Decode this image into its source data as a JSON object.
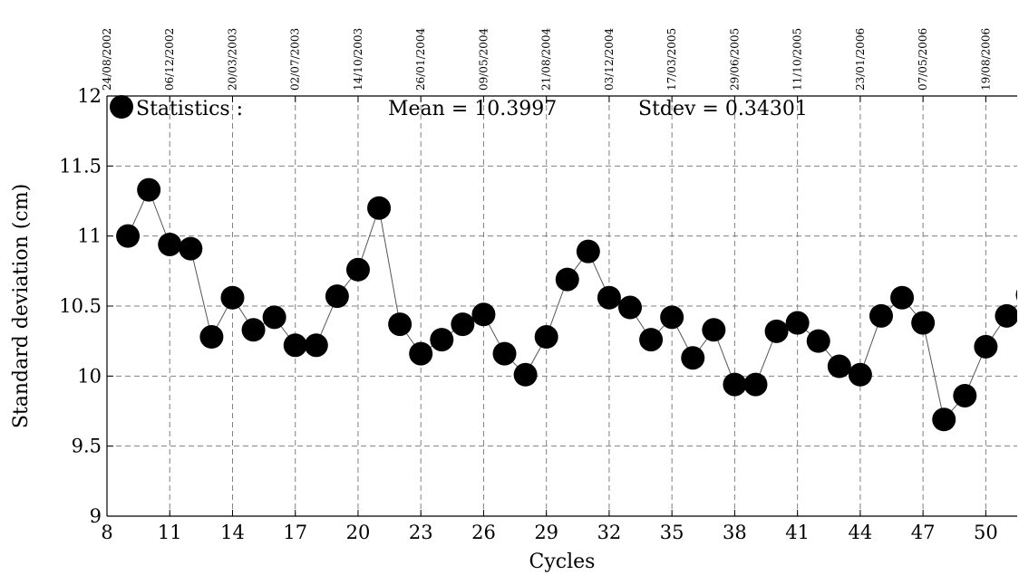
{
  "chart_data": {
    "type": "scatter",
    "xlabel": "Cycles",
    "ylabel": "Standard deviation (cm)",
    "xlim": [
      8,
      51.5
    ],
    "ylim": [
      9,
      12
    ],
    "grid": true,
    "x_ticks": [
      "8",
      "11",
      "14",
      "17",
      "20",
      "23",
      "26",
      "29",
      "32",
      "35",
      "38",
      "41",
      "44",
      "47",
      "50"
    ],
    "y_ticks": [
      "9",
      "9.5",
      "10",
      "10.5",
      "11",
      "11.5",
      "12"
    ],
    "top_axis_dates": [
      {
        "x": 8,
        "label": "24/08/2002"
      },
      {
        "x": 11,
        "label": "06/12/2002"
      },
      {
        "x": 14,
        "label": "20/03/2003"
      },
      {
        "x": 17,
        "label": "02/07/2003"
      },
      {
        "x": 20,
        "label": "14/10/2003"
      },
      {
        "x": 23,
        "label": "26/01/2004"
      },
      {
        "x": 26,
        "label": "09/05/2004"
      },
      {
        "x": 29,
        "label": "21/08/2004"
      },
      {
        "x": 32,
        "label": "03/12/2004"
      },
      {
        "x": 35,
        "label": "17/03/2005"
      },
      {
        "x": 38,
        "label": "29/06/2005"
      },
      {
        "x": 41,
        "label": "11/10/2005"
      },
      {
        "x": 44,
        "label": "23/01/2006"
      },
      {
        "x": 47,
        "label": "07/05/2006"
      },
      {
        "x": 50,
        "label": "19/08/2006"
      }
    ],
    "legend": {
      "label": "Statistics :",
      "mean": "Mean = 10.3997",
      "stdev": "Stdev = 0.34301"
    },
    "series": [
      {
        "x": [
          9,
          10,
          11,
          12,
          13,
          14,
          15,
          16,
          17,
          18,
          19,
          20,
          21,
          22,
          23,
          24,
          25,
          26,
          27,
          28,
          29,
          30,
          31,
          32,
          33,
          34,
          35,
          36,
          37,
          38,
          39,
          40,
          41,
          42,
          43,
          44,
          45,
          46,
          47,
          48,
          49,
          50,
          51,
          52
        ],
        "y": [
          11.0,
          11.33,
          10.94,
          10.91,
          10.28,
          10.56,
          10.33,
          10.42,
          10.22,
          10.22,
          10.57,
          10.76,
          11.2,
          10.37,
          10.16,
          10.26,
          10.37,
          10.44,
          10.16,
          10.01,
          10.28,
          10.69,
          10.89,
          10.56,
          10.49,
          10.26,
          10.42,
          10.13,
          10.33,
          9.94,
          9.94,
          10.32,
          10.38,
          10.25,
          10.07,
          10.01,
          10.43,
          10.56,
          10.38,
          9.69,
          9.86,
          10.21,
          10.43,
          10.58
        ]
      }
    ]
  }
}
